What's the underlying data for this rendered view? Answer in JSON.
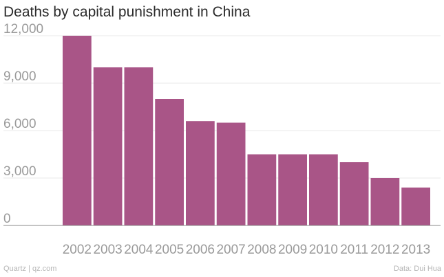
{
  "colors": {
    "bar": "#a95587"
  },
  "footer": {
    "credit": "Quartz | qz.com",
    "source": "Data: Dui Hua"
  },
  "chart_data": {
    "type": "bar",
    "title": "Deaths by capital punishment in China",
    "categories": [
      "2002",
      "2003",
      "2004",
      "2005",
      "2006",
      "2007",
      "2008",
      "2009",
      "2010",
      "2011",
      "2012",
      "2013"
    ],
    "values": [
      12000,
      10000,
      10000,
      8000,
      6600,
      6500,
      4500,
      4500,
      4500,
      4000,
      3000,
      2400
    ],
    "yticks": [
      0,
      3000,
      6000,
      9000,
      12000
    ],
    "ytick_labels": [
      "0",
      "3,000",
      "6,000",
      "9,000",
      "12,000"
    ],
    "ylim": [
      0,
      12500
    ],
    "xlabel": "",
    "ylabel": "",
    "grid": true
  }
}
